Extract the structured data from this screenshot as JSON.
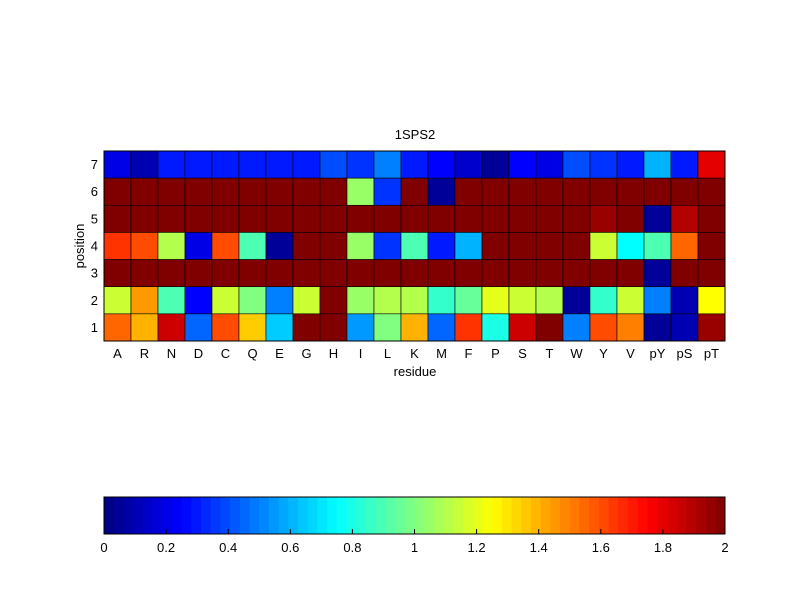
{
  "chart_data": [
    {
      "type": "heatmap",
      "title": "1SPS2",
      "xlabel": "residue",
      "ylabel": "position",
      "x_categories": [
        "A",
        "R",
        "N",
        "D",
        "C",
        "Q",
        "E",
        "G",
        "H",
        "I",
        "L",
        "K",
        "M",
        "F",
        "P",
        "S",
        "T",
        "W",
        "Y",
        "V",
        "pY",
        "pS",
        "pT"
      ],
      "y_categories": [
        "7",
        "6",
        "5",
        "4",
        "3",
        "2",
        "1"
      ],
      "colormap": "jet",
      "vmin": 0,
      "vmax": 2,
      "grid": true,
      "values": [
        [
          0.2,
          0.1,
          0.3,
          0.3,
          0.3,
          0.3,
          0.3,
          0.3,
          0.4,
          0.35,
          0.5,
          0.3,
          0.25,
          0.15,
          0.05,
          0.25,
          0.2,
          0.4,
          0.35,
          0.3,
          0.6,
          0.3,
          1.8
        ],
        [
          2.0,
          2.0,
          2.0,
          2.0,
          2.0,
          2.0,
          2.0,
          2.0,
          2.0,
          1.05,
          0.35,
          2.0,
          0.05,
          2.0,
          2.0,
          2.0,
          2.0,
          2.0,
          2.0,
          2.0,
          2.0,
          2.0,
          2.0
        ],
        [
          2.0,
          2.0,
          2.0,
          2.0,
          2.0,
          2.0,
          2.0,
          2.0,
          2.0,
          2.0,
          2.0,
          2.0,
          2.0,
          2.0,
          2.0,
          2.0,
          2.0,
          2.0,
          1.95,
          2.0,
          0.05,
          1.9,
          2.0
        ],
        [
          1.65,
          1.6,
          1.1,
          0.2,
          1.6,
          0.9,
          0.05,
          2.0,
          2.0,
          1.05,
          0.35,
          0.9,
          0.3,
          0.6,
          2.0,
          2.0,
          2.0,
          2.0,
          1.15,
          0.75,
          0.9,
          1.55,
          2.0
        ],
        [
          2.0,
          2.0,
          2.0,
          2.0,
          2.0,
          2.0,
          2.0,
          2.0,
          2.0,
          2.0,
          2.0,
          2.0,
          2.0,
          2.0,
          2.0,
          2.0,
          2.0,
          2.0,
          2.0,
          2.0,
          0.05,
          2.0,
          2.0
        ],
        [
          1.15,
          1.45,
          0.9,
          0.25,
          1.15,
          1.0,
          0.5,
          1.15,
          2.0,
          1.05,
          1.1,
          1.1,
          0.85,
          0.95,
          1.2,
          1.15,
          1.1,
          0.05,
          0.85,
          1.15,
          0.5,
          0.1,
          1.25
        ],
        [
          1.55,
          1.4,
          1.85,
          0.45,
          1.6,
          1.35,
          0.65,
          2.0,
          2.0,
          0.55,
          1.0,
          1.4,
          0.45,
          1.65,
          0.8,
          1.85,
          2.0,
          0.5,
          1.6,
          1.5,
          0.05,
          0.1,
          1.95
        ]
      ]
    },
    {
      "type": "colorbar",
      "colormap": "jet",
      "min": 0,
      "max": 2,
      "tick_labels": [
        "0",
        "0.2",
        "0.4",
        "0.6",
        "0.8",
        "1",
        "1.2",
        "1.4",
        "1.6",
        "1.8",
        "2"
      ],
      "tick_values": [
        0,
        0.2,
        0.4,
        0.6,
        0.8,
        1,
        1.2,
        1.4,
        1.6,
        1.8,
        2
      ]
    }
  ]
}
